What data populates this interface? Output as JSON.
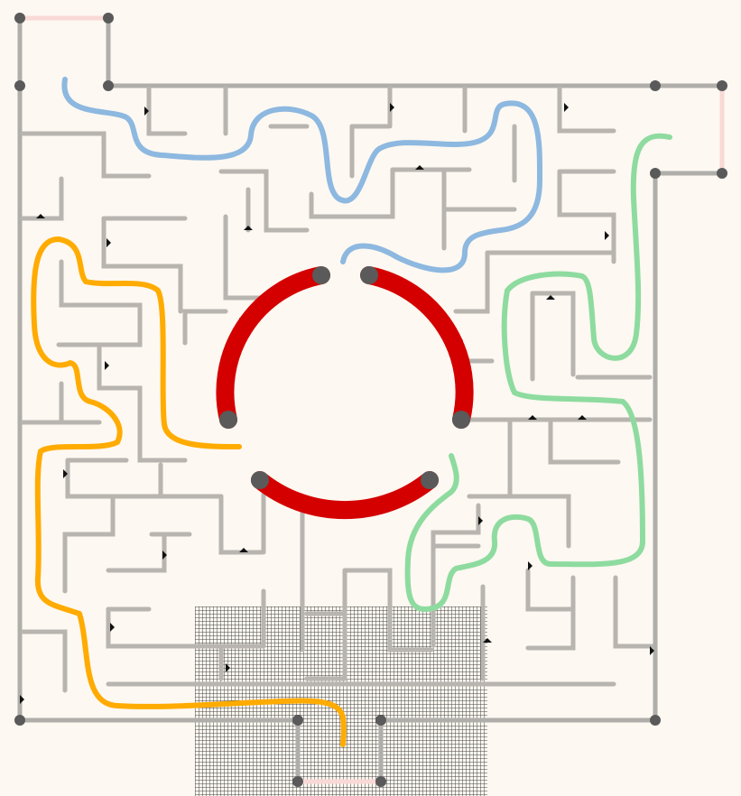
{
  "puzzle": {
    "type": "maze-path-drawing",
    "colors": {
      "background": "#fdf8f1",
      "wall": "#b8b5b0",
      "node": "#5a5a5a",
      "ring": "#d40000",
      "path_blue": "#8db8e0",
      "path_green": "#8edba0",
      "path_orange": "#ffab00",
      "exit_marker": "#f9d9d6",
      "grid_hatch": "#444444"
    },
    "paths": [
      {
        "name": "blue",
        "color": "#8db8e0"
      },
      {
        "name": "green",
        "color": "#8edba0"
      },
      {
        "name": "orange",
        "color": "#ffab00"
      }
    ],
    "center_ring_segments": 3,
    "hatched_region": true
  }
}
